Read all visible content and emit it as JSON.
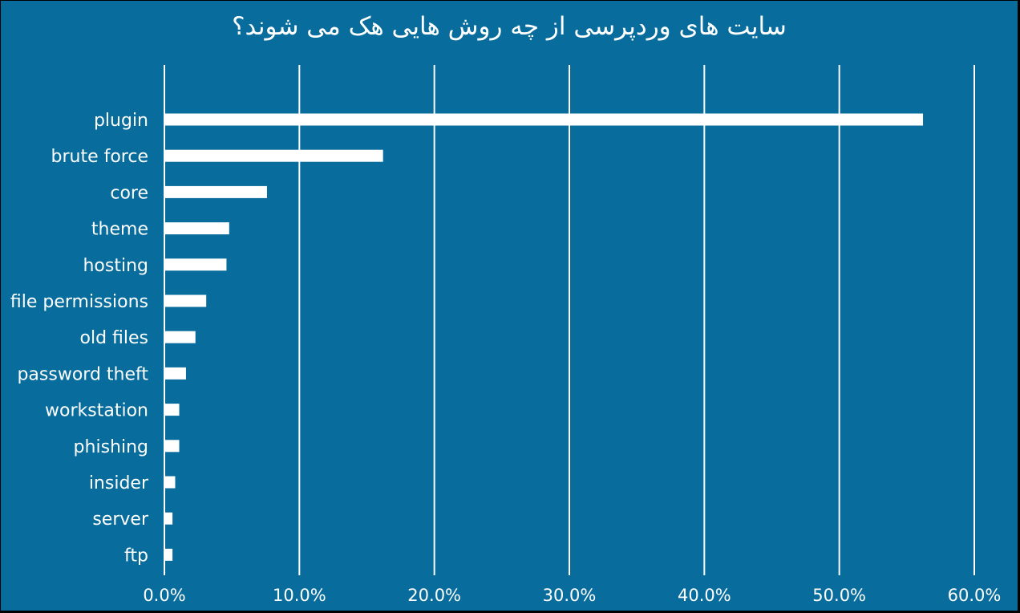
{
  "chart_data": {
    "type": "bar",
    "orientation": "horizontal",
    "title": "سایت های وردپرسی از چه روش هایی هک می شوند؟",
    "xlabel": "",
    "ylabel": "",
    "xlim": [
      0,
      60
    ],
    "x_ticks": [
      0,
      10,
      20,
      30,
      40,
      50,
      60
    ],
    "x_tick_labels": [
      "0.0%",
      "10.0%",
      "20.0%",
      "30.0%",
      "40.0%",
      "50.0%",
      "60.0%"
    ],
    "grid": true,
    "legend": "none",
    "categories": [
      "plugin",
      "brute force",
      "core",
      "theme",
      "hosting",
      "file permissions",
      "old files",
      "password theft",
      "workstation",
      "phishing",
      "insider",
      "server",
      "ftp"
    ],
    "values": [
      56.2,
      16.2,
      7.6,
      4.8,
      4.6,
      3.1,
      2.3,
      1.6,
      1.1,
      1.1,
      0.8,
      0.6,
      0.6
    ],
    "colors": {
      "background": "#086d9d",
      "bar": "#ffffff",
      "grid": "#ffffff",
      "text": "#ffffff"
    }
  }
}
